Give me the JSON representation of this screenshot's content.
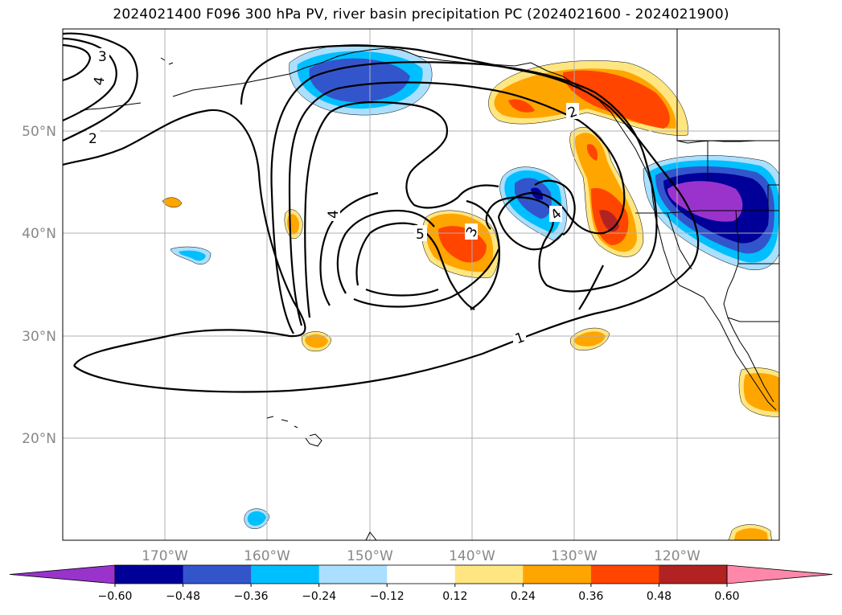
{
  "title": "2024021400 F096 300 hPa PV, river basin precipitation PC (2024021600 - 2024021900)",
  "map": {
    "lon_range": [
      -180,
      -110
    ],
    "lat_range": [
      10,
      60
    ],
    "lon_ticks": [
      {
        "value": -170,
        "label": "170°W"
      },
      {
        "value": -160,
        "label": "160°W"
      },
      {
        "value": -150,
        "label": "150°W"
      },
      {
        "value": -140,
        "label": "140°W"
      },
      {
        "value": -130,
        "label": "130°W"
      },
      {
        "value": -120,
        "label": "120°W"
      }
    ],
    "lat_ticks": [
      {
        "value": 20,
        "label": "20°N"
      },
      {
        "value": 30,
        "label": "30°N"
      },
      {
        "value": 40,
        "label": "40°N"
      },
      {
        "value": 50,
        "label": "50°N"
      }
    ],
    "grid": true,
    "pv_contour_labels": [
      "1",
      "2",
      "3",
      "4",
      "5"
    ]
  },
  "colorbar": {
    "colors": [
      "#9933cc",
      "#000099",
      "#3355cc",
      "#00bfff",
      "#aadfff",
      "#ffffff",
      "#ffe680",
      "#ffa500",
      "#ff4500",
      "#b22222",
      "#ff88aa"
    ],
    "tick_labels": [
      "−0.60",
      "−0.48",
      "−0.36",
      "−0.24",
      "−0.12",
      "0.12",
      "0.24",
      "0.36",
      "0.48",
      "0.60"
    ],
    "extend": "both"
  }
}
